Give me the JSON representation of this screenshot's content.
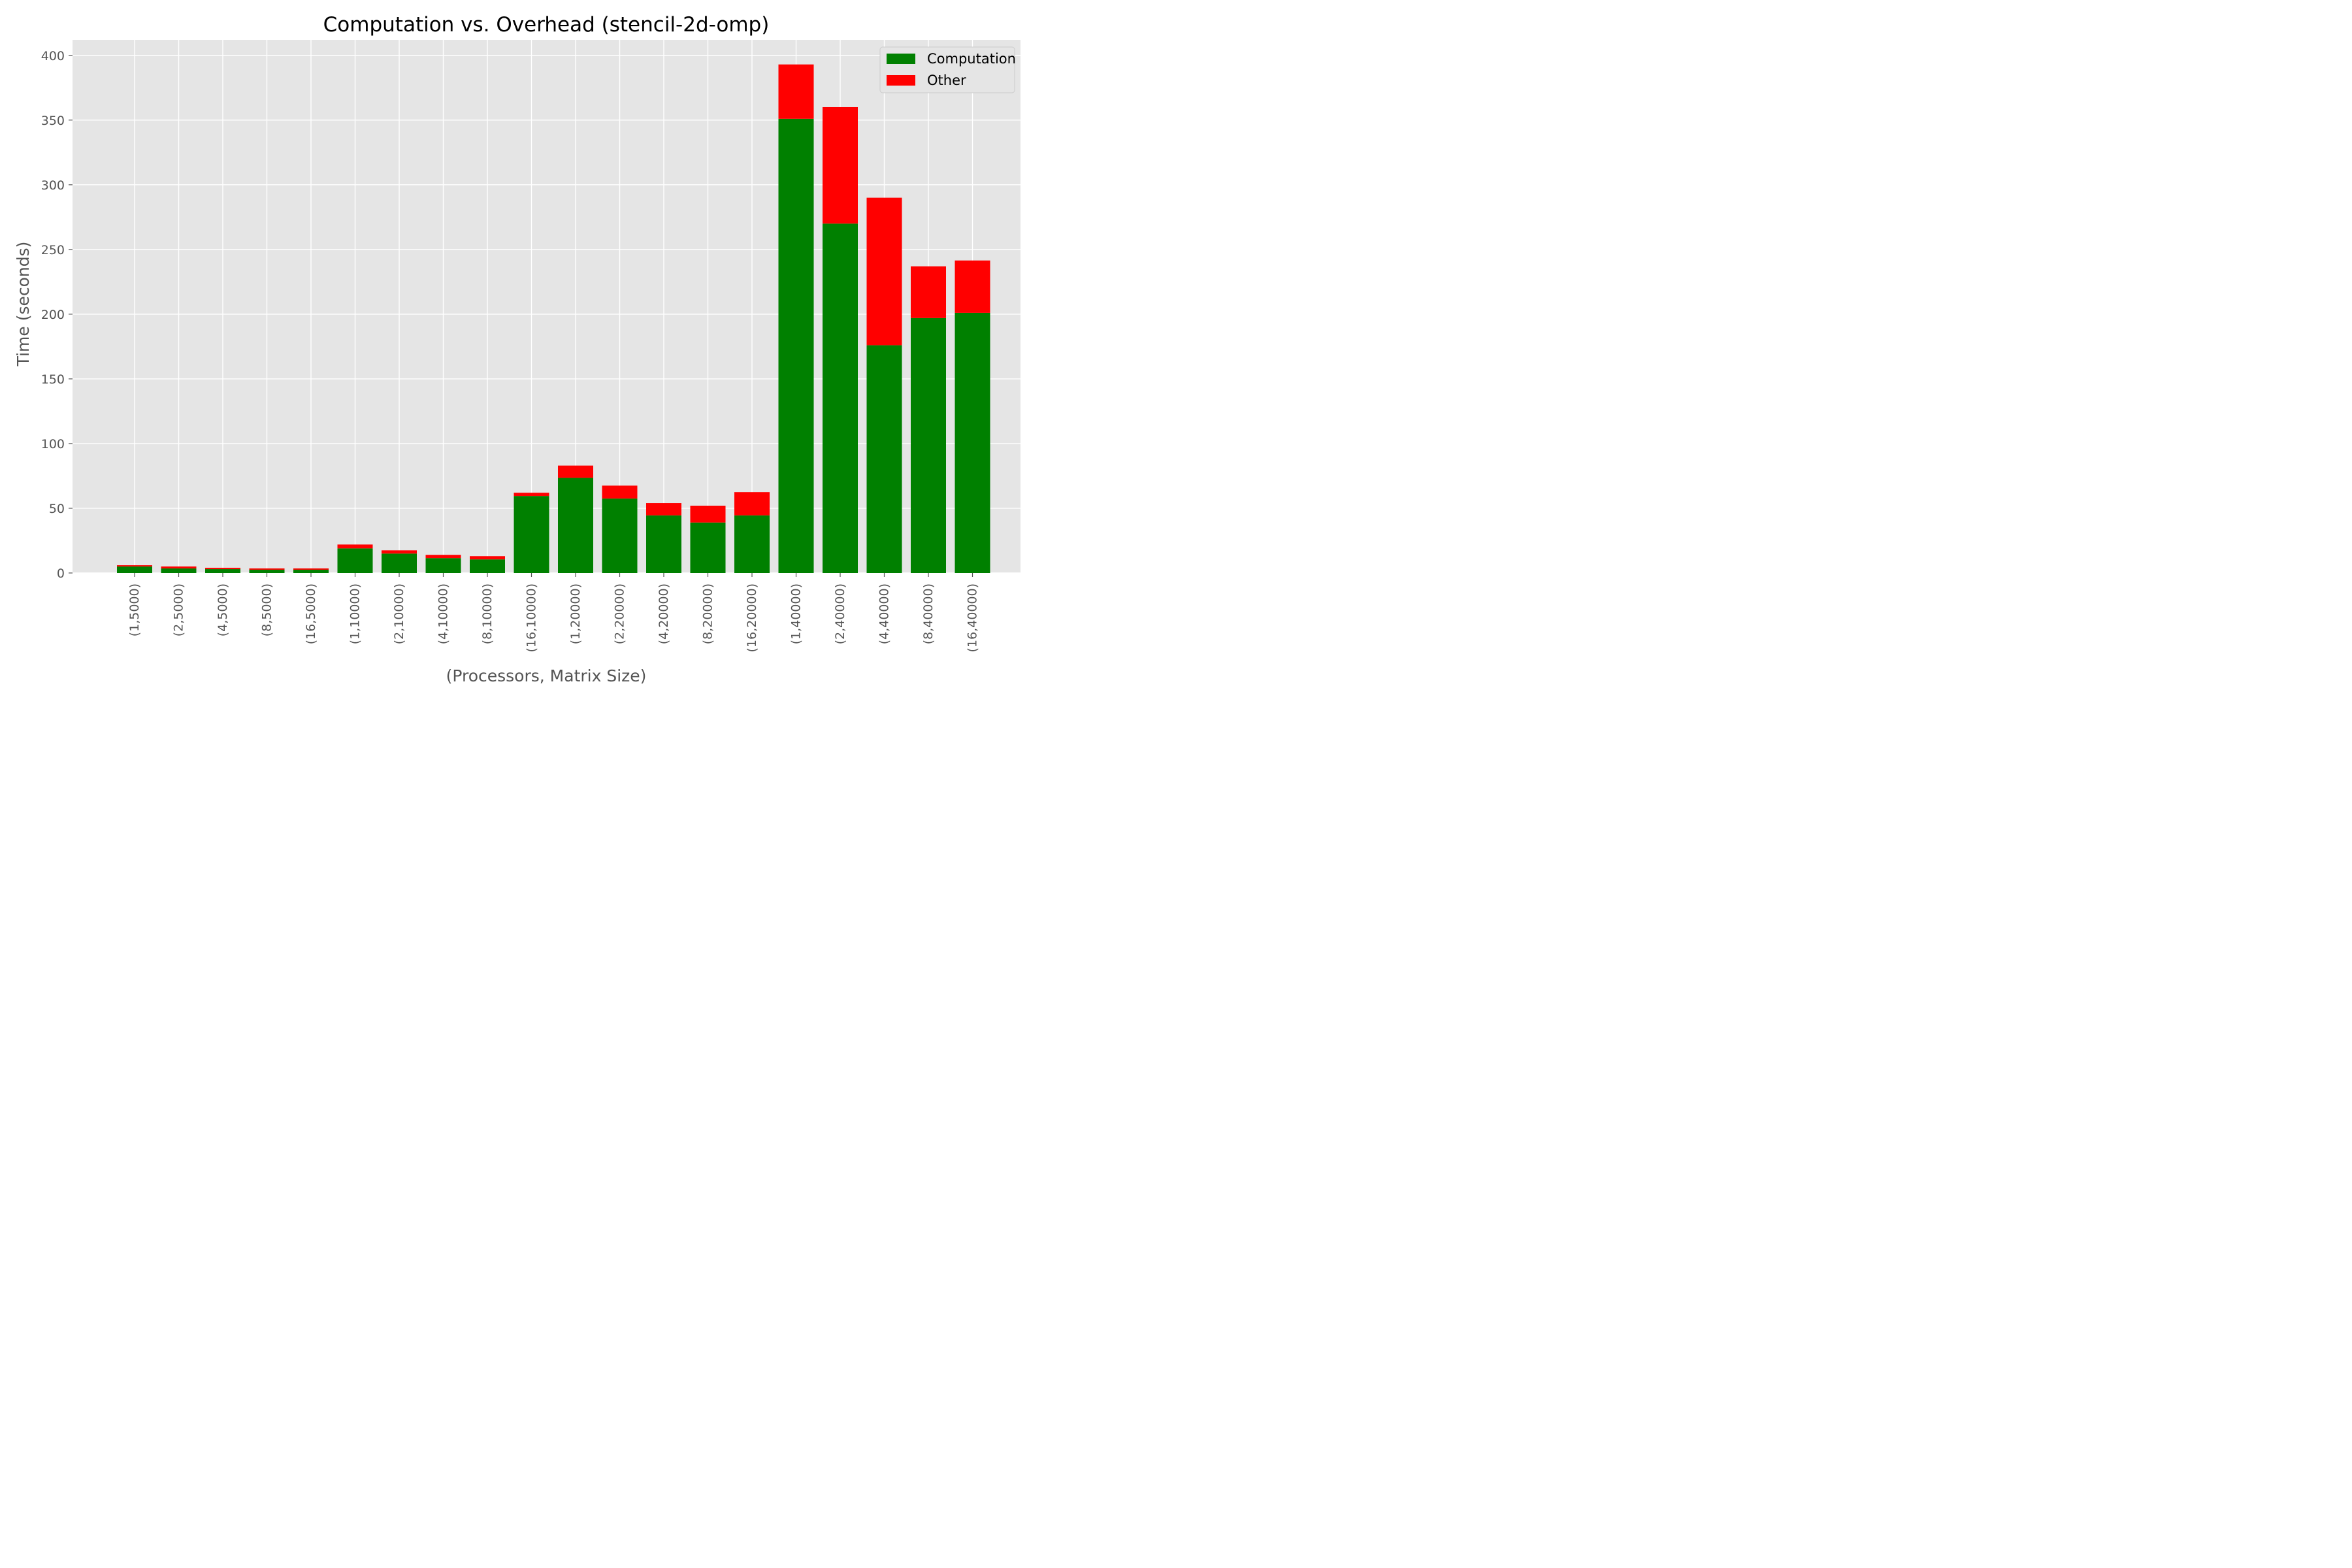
{
  "chart_data": {
    "type": "bar",
    "stacked": true,
    "title": "Computation vs. Overhead (stencil-2d-omp)",
    "xlabel": "(Processors, Matrix Size)",
    "ylabel": "Time (seconds)",
    "ylim": [
      0,
      412
    ],
    "yticks": [
      "0",
      "50",
      "100",
      "150",
      "200",
      "250",
      "300",
      "350",
      "400"
    ],
    "grid": true,
    "legend_position": "top-right",
    "categories": [
      "(1,5000)",
      "(2,5000)",
      "(4,5000)",
      "(8,5000)",
      "(16,5000)",
      "(1,10000)",
      "(2,10000)",
      "(4,10000)",
      "(8,10000)",
      "(16,10000)",
      "(1,20000)",
      "(2,20000)",
      "(4,20000)",
      "(8,20000)",
      "(16,20000)",
      "(1,40000)",
      "(2,40000)",
      "(4,40000)",
      "(8,40000)",
      "(16,40000)"
    ],
    "series": [
      {
        "name": "Computation",
        "color": "#008000",
        "values": [
          5,
          3.5,
          3,
          2.5,
          2.5,
          19,
          15,
          11.5,
          10.5,
          59.5,
          73.5,
          57.5,
          44.5,
          39,
          44.5,
          351,
          270,
          176,
          197,
          201
        ]
      },
      {
        "name": "Other",
        "color": "#ff0000",
        "values": [
          1,
          1.5,
          1,
          1,
          1,
          3,
          2.5,
          2.5,
          2.5,
          2.5,
          9.5,
          10,
          9.5,
          13,
          18,
          42,
          90,
          114,
          40,
          40.5
        ]
      }
    ]
  }
}
